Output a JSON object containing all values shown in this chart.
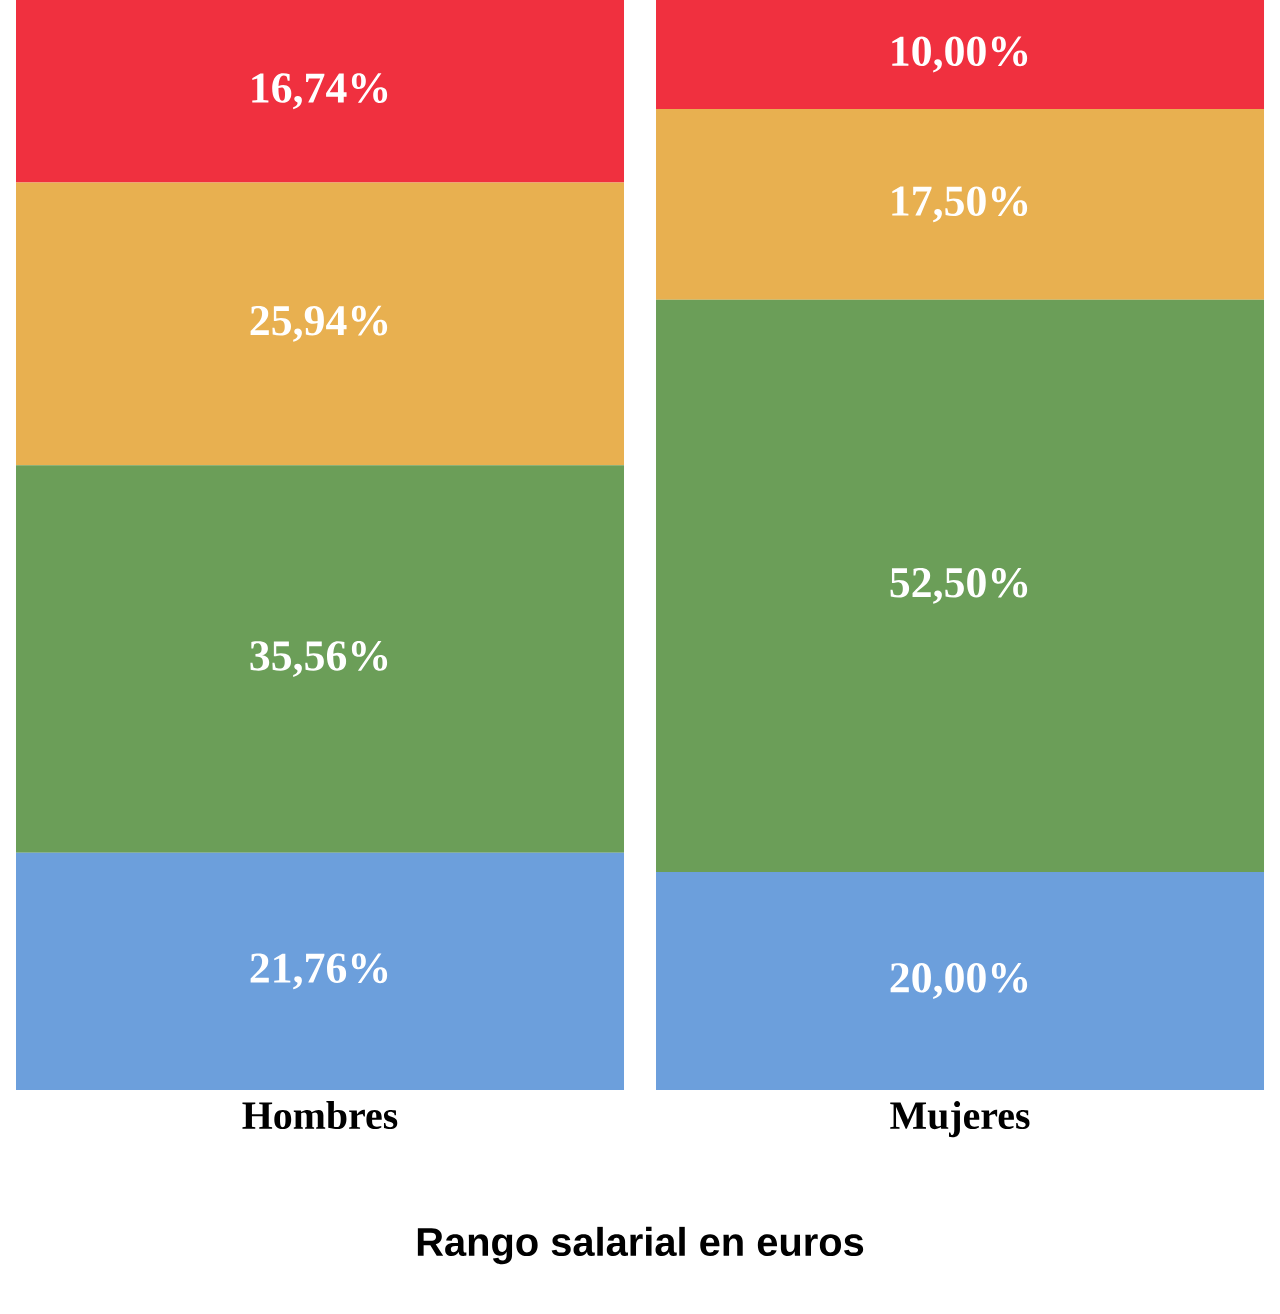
{
  "chart_data": {
    "type": "bar",
    "stacked": true,
    "xlabel": "Rango salarial en euros",
    "categories": [
      "Hombres",
      "Mujeres"
    ],
    "ylim": [
      0,
      100
    ],
    "tick_labels": "x",
    "series": [
      {
        "color": "#6c9fdc",
        "values": [
          21.76,
          20.0
        ],
        "value_labels": [
          "21,76%",
          "20,00%"
        ]
      },
      {
        "color": "#6b9e58",
        "values": [
          35.56,
          52.5
        ],
        "value_labels": [
          "35,56%",
          "52,50%"
        ]
      },
      {
        "color": "#e8b050",
        "values": [
          25.94,
          17.5
        ],
        "value_labels": [
          "25,94%",
          "17,50%"
        ]
      },
      {
        "color": "#f0303f",
        "values": [
          16.74,
          10.0
        ],
        "value_labels": [
          "16,74%",
          "10,00%"
        ]
      }
    ]
  }
}
